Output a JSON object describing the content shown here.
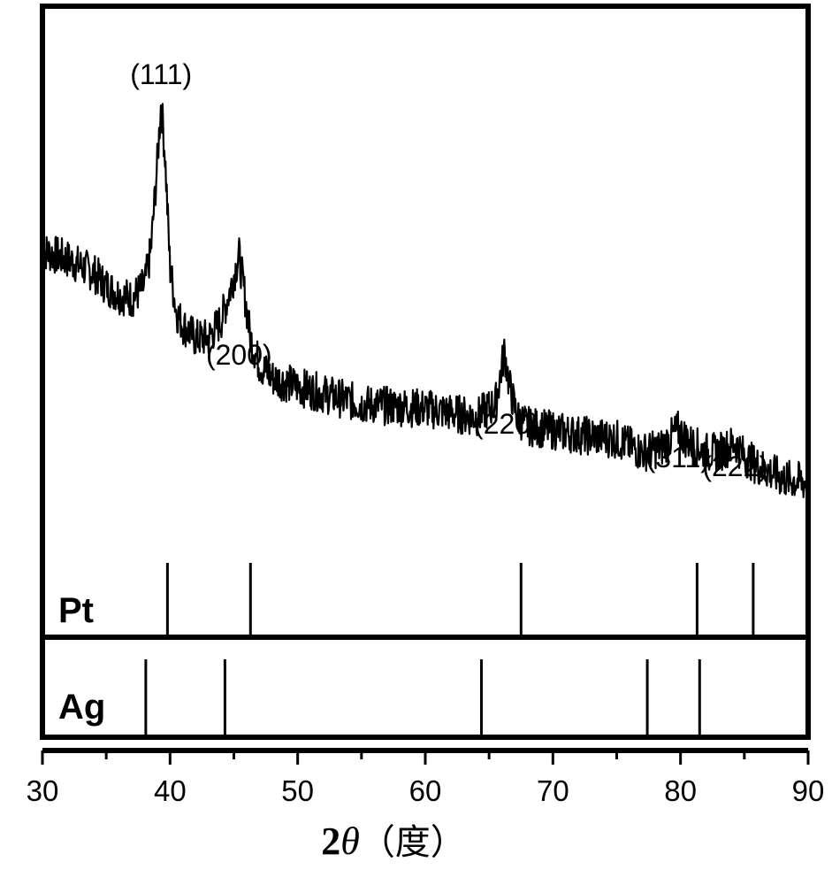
{
  "chart_data": {
    "type": "line",
    "xlabel": "2θ（度）",
    "xlabel_parts": {
      "num": "2",
      "symbol": "θ",
      "unit": "（度）"
    },
    "xlim": [
      30,
      90
    ],
    "x_ticks": [
      30,
      40,
      50,
      60,
      70,
      80,
      90
    ],
    "grid": false,
    "series": [
      {
        "x": [
          30,
          32,
          34,
          35,
          36,
          37,
          38,
          38.5,
          39,
          39.3,
          39.6,
          40,
          40.5,
          41,
          42,
          43,
          44,
          44.8,
          45.4,
          45.8,
          46.3,
          47,
          48,
          50,
          55,
          60,
          62,
          64,
          65.5,
          66.2,
          66.6,
          67.2,
          68,
          70,
          72,
          75,
          77,
          78.5,
          79.8,
          80.8,
          82,
          83,
          84.3,
          85,
          86,
          88,
          90
        ],
        "y": [
          0.66,
          0.64,
          0.61,
          0.58,
          0.56,
          0.55,
          0.58,
          0.66,
          0.86,
          1.0,
          0.88,
          0.62,
          0.52,
          0.49,
          0.46,
          0.46,
          0.5,
          0.58,
          0.65,
          0.57,
          0.46,
          0.4,
          0.37,
          0.35,
          0.31,
          0.3,
          0.29,
          0.28,
          0.31,
          0.43,
          0.35,
          0.28,
          0.26,
          0.25,
          0.24,
          0.23,
          0.2,
          0.21,
          0.25,
          0.22,
          0.2,
          0.2,
          0.22,
          0.19,
          0.17,
          0.14,
          0.13
        ]
      }
    ],
    "peak_labels": [
      {
        "text": "(111)",
        "x": 39.3
      },
      {
        "text": "(200)",
        "x": 45.4
      },
      {
        "text": "(220)",
        "x": 66.4
      },
      {
        "text": "(311)",
        "x": 79.8
      },
      {
        "text": "(222)",
        "x": 84.3
      }
    ],
    "reference_patterns": [
      {
        "label": "Pt",
        "positions": [
          39.8,
          46.3,
          67.5,
          81.3,
          85.7
        ]
      },
      {
        "label": "Ag",
        "positions": [
          38.1,
          44.3,
          64.4,
          77.4,
          81.5
        ]
      }
    ]
  }
}
